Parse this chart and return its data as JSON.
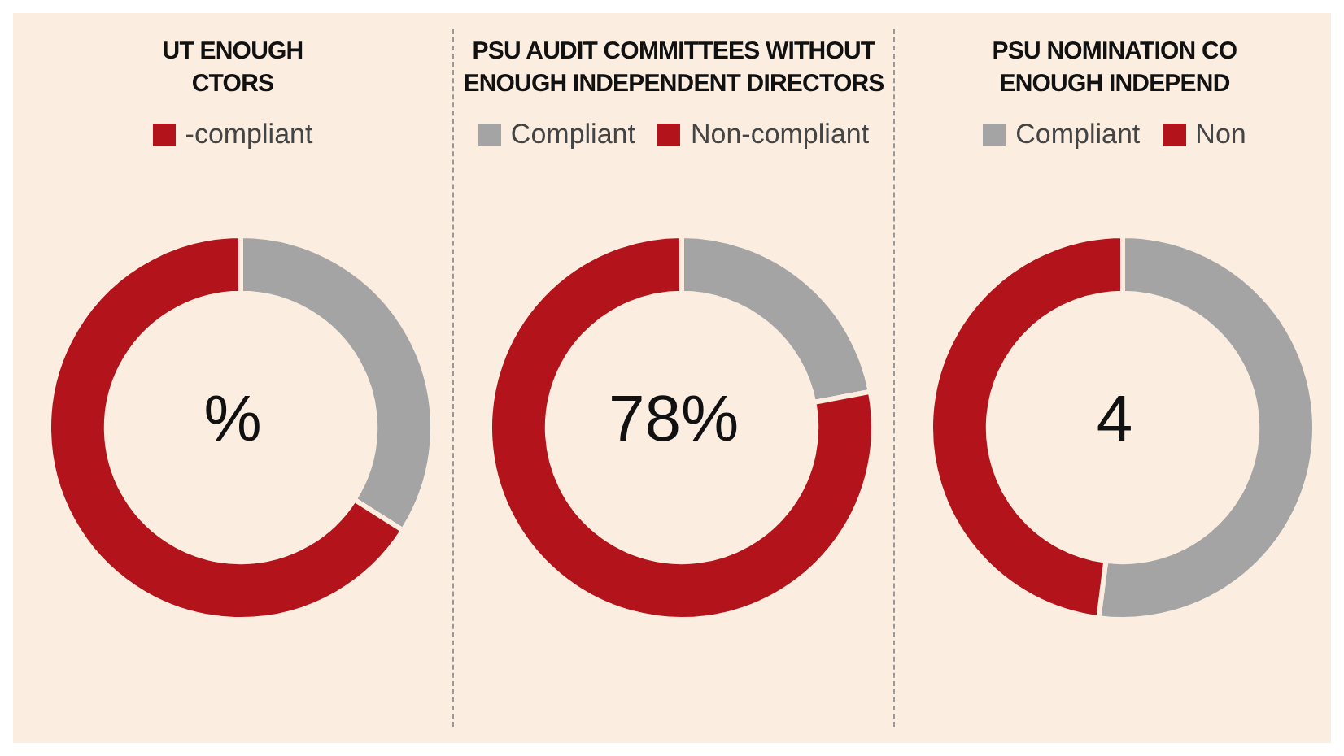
{
  "chart_data": [
    {
      "type": "donut",
      "title": "UT ENOUGH\nCTORS",
      "categories": [
        null,
        "-compliant"
      ],
      "values": [
        34,
        66
      ],
      "colors": [
        "#a4a4a4",
        "#b3141c"
      ],
      "legend": "top",
      "annotations": [
        "%"
      ]
    },
    {
      "type": "donut",
      "title": "PSU AUDIT COMMITTEES WITHOUT\nENOUGH INDEPENDENT DIRECTORS",
      "categories": [
        "Compliant",
        "Non-compliant"
      ],
      "values": [
        22,
        78
      ],
      "colors": [
        "#a4a4a4",
        "#b3141c"
      ],
      "legend": "top",
      "annotations": [
        "78%"
      ]
    },
    {
      "type": "donut",
      "title": "PSU NOMINATION CO\nENOUGH INDEPEND",
      "categories": [
        "Compliant",
        "Non"
      ],
      "values": [
        52,
        48
      ],
      "colors": [
        "#a4a4a4",
        "#b3141c"
      ],
      "legend": "top",
      "annotations": [
        "4"
      ]
    }
  ]
}
